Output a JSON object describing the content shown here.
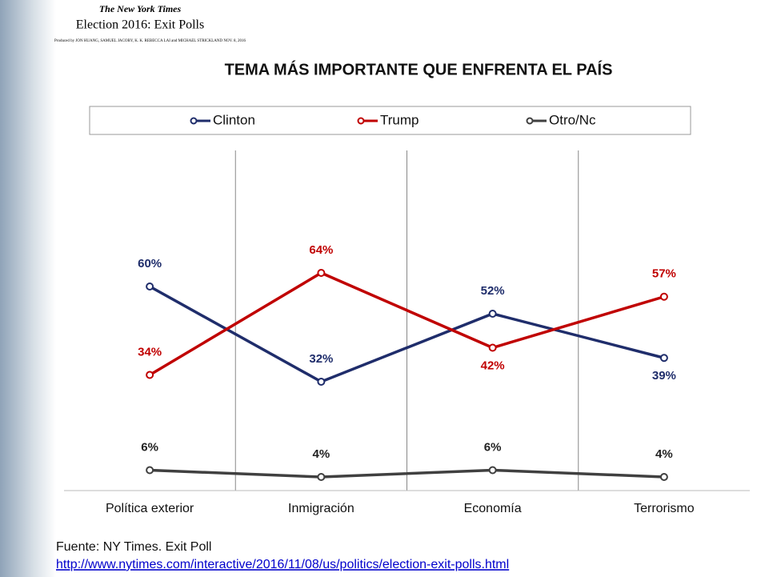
{
  "header": {
    "logo": "The New York Times",
    "title": "Election 2016: Exit Polls",
    "credits": "Produced by JON HUANG, SAMUEL JACOBY, K. K. REBECCA LAI and MICHAEL STRICKLAND NOV. 8, 2016"
  },
  "chart_data": {
    "type": "line",
    "title": "TEMA MÁS IMPORTANTE QUE ENFRENTA EL PAÍS",
    "categories": [
      "Política exterior",
      "Inmigración",
      "Economía",
      "Terrorismo"
    ],
    "ylim": [
      0,
      100
    ],
    "series": [
      {
        "name": "Clinton",
        "color": "#1f2d6b",
        "values": [
          60,
          32,
          52,
          39
        ],
        "value_labels": [
          "60%",
          "32%",
          "52%",
          "39%"
        ]
      },
      {
        "name": "Trump",
        "color": "#c00000",
        "values": [
          34,
          64,
          42,
          57
        ],
        "value_labels": [
          "34%",
          "64%",
          "42%",
          "57%"
        ]
      },
      {
        "name": "Otro/Nc",
        "color": "#404040",
        "values": [
          6,
          4,
          6,
          4
        ],
        "value_labels": [
          "6%",
          "4%",
          "6%",
          "4%"
        ]
      }
    ]
  },
  "footer": {
    "source": "Fuente: NY Times. Exit Poll",
    "url": "http://www.nytimes.com/interactive/2016/11/08/us/politics/election-exit-polls.html"
  }
}
